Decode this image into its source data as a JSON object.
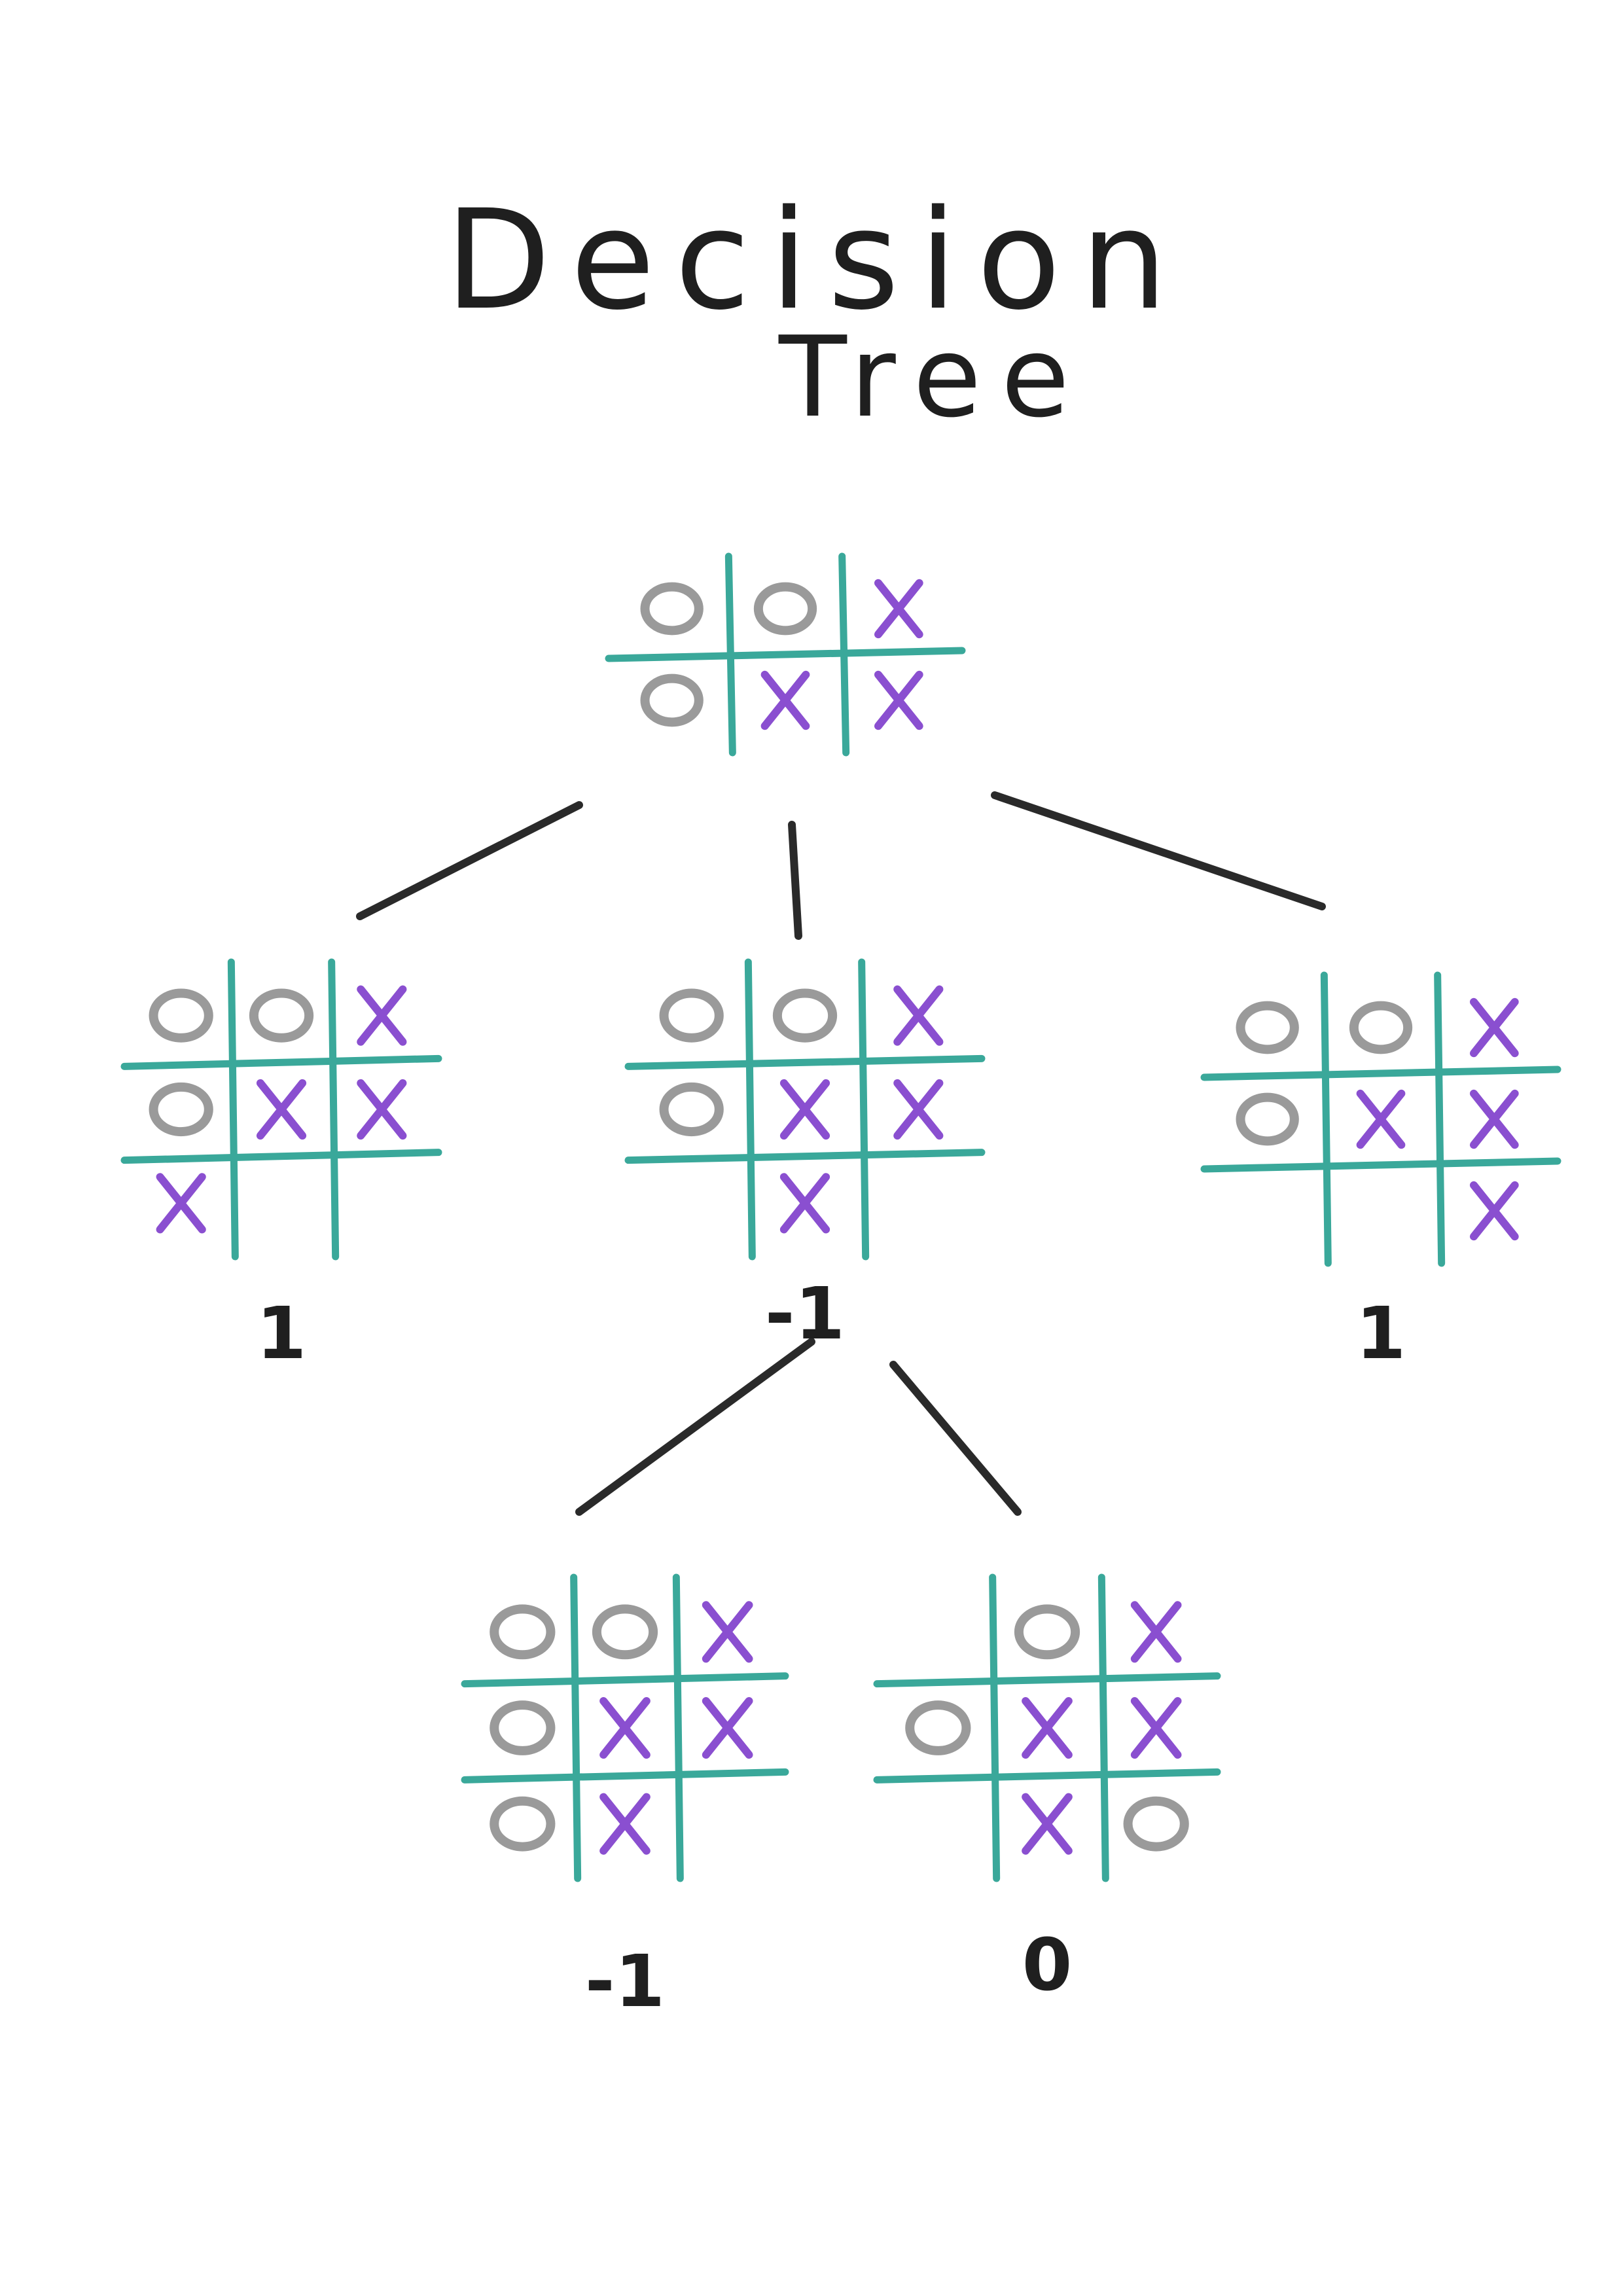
{
  "title": {
    "line1": "Decision",
    "line2": "Tree"
  },
  "colors": {
    "grid": "#3aa89a",
    "x_mark": "#8a4fd0",
    "o_mark": "#9a9a9a",
    "ink": "#1f1f1f"
  },
  "nodes": [
    {
      "id": "root",
      "rows": [
        [
          "O",
          "O",
          "X"
        ],
        [
          "O",
          "X",
          "X"
        ]
      ],
      "score": ""
    },
    {
      "id": "child-left",
      "rows": [
        [
          "O",
          "O",
          "X"
        ],
        [
          "O",
          "X",
          "X"
        ],
        [
          "X",
          "",
          ""
        ]
      ],
      "score": "1"
    },
    {
      "id": "child-middle",
      "rows": [
        [
          "O",
          "O",
          "X"
        ],
        [
          "O",
          "X",
          "X"
        ],
        [
          "",
          "X",
          ""
        ]
      ],
      "score": "-1"
    },
    {
      "id": "child-right",
      "rows": [
        [
          "O",
          "O",
          "X"
        ],
        [
          "O",
          "X",
          "X"
        ],
        [
          "",
          "",
          "X"
        ]
      ],
      "score": "1"
    },
    {
      "id": "grandchild-left",
      "rows": [
        [
          "O",
          "O",
          "X"
        ],
        [
          "O",
          "X",
          "X"
        ],
        [
          "O",
          "X",
          ""
        ]
      ],
      "score": "-1"
    },
    {
      "id": "grandchild-right",
      "rows": [
        [
          "",
          "O",
          "X"
        ],
        [
          "O",
          "X",
          "X"
        ],
        [
          "",
          "X",
          "O"
        ]
      ],
      "score": "0"
    }
  ],
  "edges": [
    {
      "from": "root",
      "to": "child-left"
    },
    {
      "from": "root",
      "to": "child-middle"
    },
    {
      "from": "root",
      "to": "child-right"
    },
    {
      "from": "child-middle",
      "to": "grandchild-left"
    },
    {
      "from": "child-middle",
      "to": "grandchild-right"
    }
  ]
}
